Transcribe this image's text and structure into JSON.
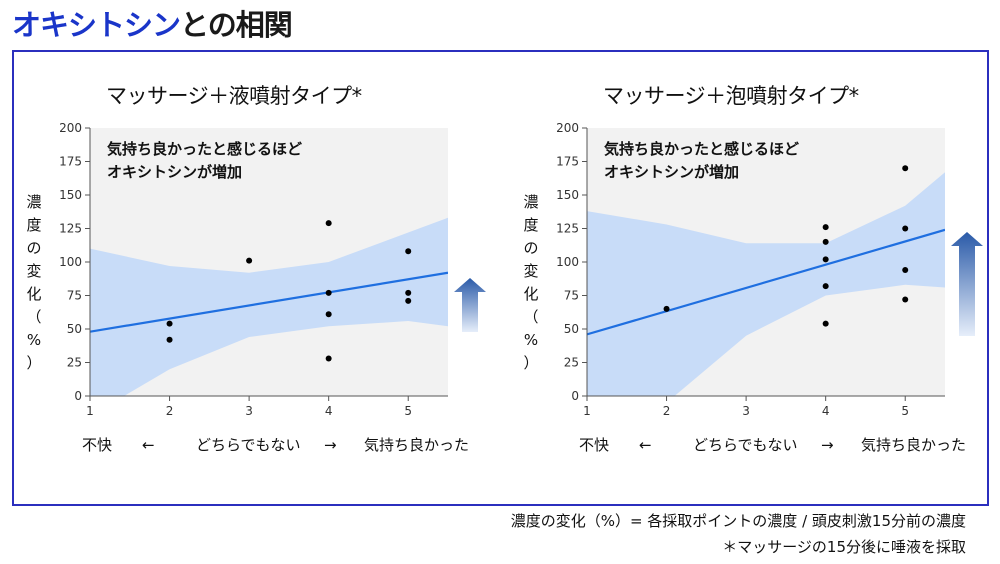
{
  "page": {
    "title_accent": "オキシトシン",
    "title_rest": "との相関"
  },
  "colors": {
    "title_accent": "#1a35c9",
    "frame_border": "#2b2fbe",
    "plot_bg": "#f2f2f2",
    "confidence_band": "#c8dcf8",
    "trend_line": "#1f6fe0",
    "points": "#000000",
    "arrow_dark": "#2a5aa8",
    "arrow_light": "#e6eefa"
  },
  "chart_data": [
    {
      "type": "scatter",
      "title": "マッサージ＋液噴射タイプ*",
      "annotation": [
        "気持ち良かったと感じるほど",
        "オキシトシンが増加"
      ],
      "ylabel_chars": [
        "濃",
        "度",
        "の",
        "変",
        "化",
        "（",
        "%",
        "）"
      ],
      "xlim": [
        1,
        5.5
      ],
      "ylim": [
        0,
        200
      ],
      "xticks": [
        1,
        2,
        3,
        4,
        5
      ],
      "yticks": [
        0,
        25,
        50,
        75,
        100,
        125,
        150,
        175,
        200
      ],
      "x_category_labels": {
        "left": "不快",
        "left_arrow": "←",
        "middle": "どちらでもない",
        "right_arrow": "→",
        "right": "気持ち良かった"
      },
      "points": [
        {
          "x": 2,
          "y": 54
        },
        {
          "x": 2,
          "y": 42
        },
        {
          "x": 3,
          "y": 101
        },
        {
          "x": 4,
          "y": 129
        },
        {
          "x": 4,
          "y": 77
        },
        {
          "x": 4,
          "y": 61
        },
        {
          "x": 4,
          "y": 28
        },
        {
          "x": 5,
          "y": 108
        },
        {
          "x": 5,
          "y": 77
        },
        {
          "x": 5,
          "y": 71
        }
      ],
      "trend": {
        "x": [
          1,
          5.5
        ],
        "y": [
          48,
          92
        ]
      },
      "band": {
        "x": [
          1,
          2,
          3,
          4,
          5,
          5.5
        ],
        "upper": [
          110,
          97,
          92,
          100,
          122,
          133
        ],
        "lower": [
          -15,
          20,
          44,
          52,
          56,
          52
        ]
      },
      "arrow_size": "short"
    },
    {
      "type": "scatter",
      "title": "マッサージ＋泡噴射タイプ*",
      "annotation": [
        "気持ち良かったと感じるほど",
        "オキシトシンが増加"
      ],
      "ylabel_chars": [
        "濃",
        "度",
        "の",
        "変",
        "化",
        "（",
        "%",
        "）"
      ],
      "xlim": [
        1,
        5.5
      ],
      "ylim": [
        0,
        200
      ],
      "xticks": [
        1,
        2,
        3,
        4,
        5
      ],
      "yticks": [
        0,
        25,
        50,
        75,
        100,
        125,
        150,
        175,
        200
      ],
      "x_category_labels": {
        "left": "不快",
        "left_arrow": "←",
        "middle": "どちらでもない",
        "right_arrow": "→",
        "right": "気持ち良かった"
      },
      "points": [
        {
          "x": 2,
          "y": 65
        },
        {
          "x": 4,
          "y": 126
        },
        {
          "x": 4,
          "y": 115
        },
        {
          "x": 4,
          "y": 102
        },
        {
          "x": 4,
          "y": 82
        },
        {
          "x": 4,
          "y": 54
        },
        {
          "x": 5,
          "y": 170
        },
        {
          "x": 5,
          "y": 125
        },
        {
          "x": 5,
          "y": 94
        },
        {
          "x": 5,
          "y": 72
        }
      ],
      "trend": {
        "x": [
          1,
          5.5
        ],
        "y": [
          46,
          124
        ]
      },
      "band": {
        "x": [
          1,
          2,
          3,
          4,
          5,
          5.5
        ],
        "upper": [
          138,
          128,
          114,
          114,
          142,
          167
        ],
        "lower": [
          -45,
          -5,
          45,
          75,
          83,
          81
        ]
      },
      "arrow_size": "tall"
    }
  ],
  "footnotes": {
    "line1": "濃度の変化（%）= 各採取ポイントの濃度 / 頭皮刺激15分前の濃度",
    "line2": "＊マッサージの15分後に唾液を採取"
  }
}
